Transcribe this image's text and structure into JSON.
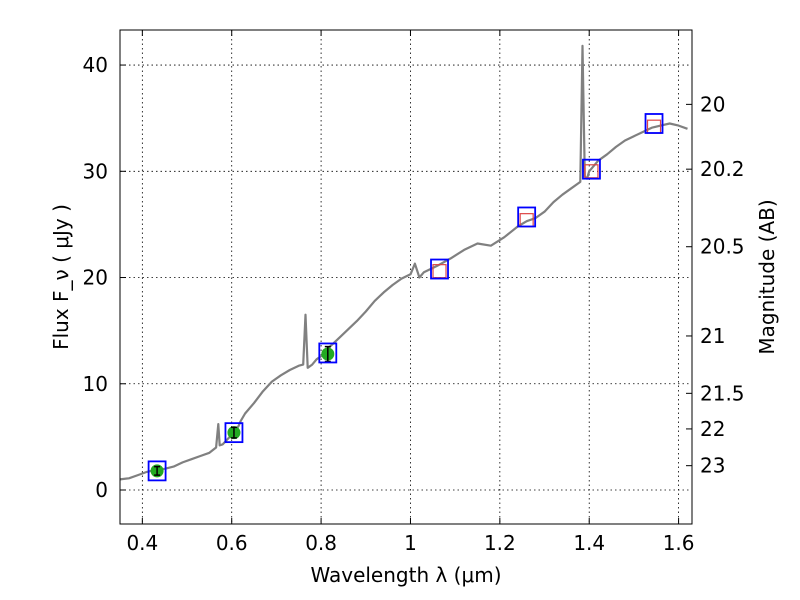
{
  "chart_data": {
    "type": "line",
    "xlabel": "Wavelength  λ (μm)",
    "ylabel": "Flux  F_ν  ( μJy )",
    "ylabel_right": "Magnitude (AB)",
    "xlim": [
      0.35,
      1.63
    ],
    "ylim": [
      -3.2,
      43.3
    ],
    "grid": true,
    "x_ticks": [
      0.4,
      0.6,
      0.8,
      1.0,
      1.2,
      1.4,
      1.6
    ],
    "x_tick_labels": [
      "0.4",
      "0.6",
      "0.8",
      "1",
      "1.2",
      "1.4",
      "1.6"
    ],
    "y_ticks": [
      0,
      10,
      20,
      30,
      40
    ],
    "y_tick_labels": [
      "0",
      "10",
      "20",
      "30",
      "40"
    ],
    "right_ticks": [
      {
        "label": "20",
        "flux": 36.3
      },
      {
        "label": "20.2",
        "flux": 30.2
      },
      {
        "label": "20.5",
        "flux": 22.9
      },
      {
        "label": "21",
        "flux": 14.5
      },
      {
        "label": "21.5",
        "flux": 9.1
      },
      {
        "label": "22",
        "flux": 5.75
      },
      {
        "label": "23",
        "flux": 2.29
      }
    ],
    "series": [
      {
        "name": "spectrum",
        "color": "#808080",
        "x": [
          0.35,
          0.37,
          0.39,
          0.41,
          0.43,
          0.45,
          0.47,
          0.49,
          0.51,
          0.53,
          0.55,
          0.565,
          0.57,
          0.573,
          0.58,
          0.6,
          0.615,
          0.62,
          0.63,
          0.65,
          0.67,
          0.69,
          0.71,
          0.73,
          0.75,
          0.76,
          0.765,
          0.77,
          0.78,
          0.79,
          0.8,
          0.82,
          0.84,
          0.86,
          0.88,
          0.9,
          0.92,
          0.94,
          0.96,
          0.98,
          1.0,
          1.01,
          1.02,
          1.03,
          1.06,
          1.09,
          1.12,
          1.15,
          1.18,
          1.21,
          1.24,
          1.26,
          1.28,
          1.3,
          1.32,
          1.34,
          1.36,
          1.38,
          1.385,
          1.39,
          1.395,
          1.4,
          1.42,
          1.44,
          1.46,
          1.48,
          1.5,
          1.52,
          1.54,
          1.56,
          1.58,
          1.6,
          1.62
        ],
        "y": [
          1.0,
          1.1,
          1.4,
          1.7,
          1.9,
          2.0,
          2.2,
          2.6,
          2.9,
          3.2,
          3.5,
          4.0,
          6.2,
          4.2,
          4.3,
          5.2,
          6.0,
          6.5,
          7.2,
          8.2,
          9.3,
          10.2,
          10.8,
          11.3,
          11.7,
          11.8,
          16.5,
          11.5,
          11.8,
          12.3,
          12.6,
          13.5,
          14.3,
          15.1,
          15.9,
          16.8,
          17.8,
          18.6,
          19.3,
          19.9,
          20.3,
          21.3,
          20.0,
          20.5,
          21.1,
          21.8,
          22.6,
          23.2,
          23.0,
          23.8,
          24.8,
          25.3,
          25.6,
          26.2,
          27.1,
          27.8,
          28.4,
          29.0,
          41.8,
          29.5,
          29.3,
          30.0,
          31.0,
          31.6,
          32.3,
          32.9,
          33.3,
          33.7,
          34.1,
          34.3,
          34.5,
          34.3,
          34.0
        ]
      },
      {
        "name": "photometry-green",
        "color": "#22aa22",
        "x": [
          0.433,
          0.605,
          0.815
        ],
        "y": [
          1.8,
          5.4,
          12.8
        ],
        "yerr": [
          0.4,
          0.5,
          0.7
        ]
      },
      {
        "name": "model-blue-squares",
        "color": "#0000ff",
        "x": [
          0.433,
          0.605,
          0.815,
          1.065,
          1.26,
          1.405,
          1.545
        ],
        "y": [
          1.8,
          5.4,
          12.9,
          20.8,
          25.7,
          30.2,
          34.5
        ]
      },
      {
        "name": "photometry-red-squares",
        "color": "#dd4444",
        "x": [
          1.065,
          1.26,
          1.405,
          1.545
        ],
        "y": [
          20.6,
          25.4,
          30.0,
          34.2
        ]
      }
    ]
  }
}
